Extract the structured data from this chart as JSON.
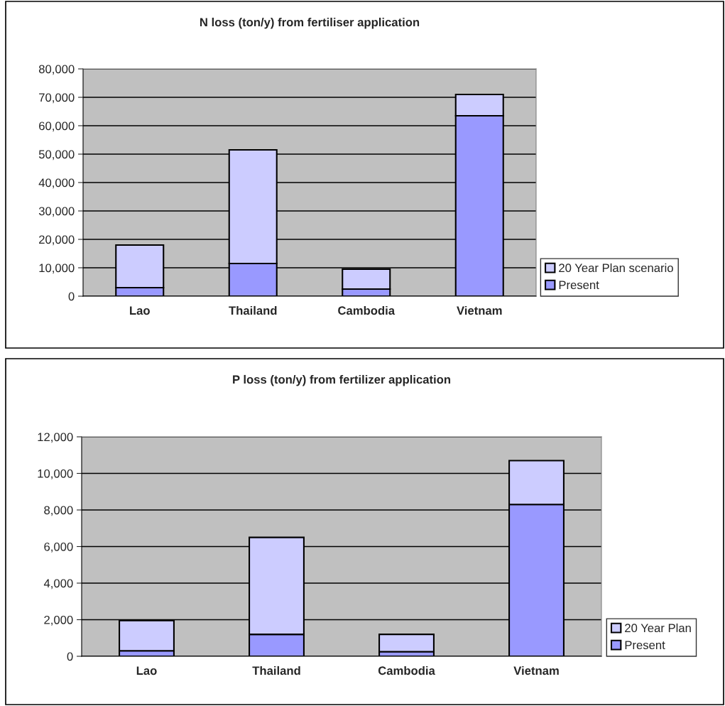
{
  "chart_data": [
    {
      "type": "bar",
      "title": "N loss (ton/y) from fertiliser application",
      "categories": [
        "Lao",
        "Thailand",
        "Cambodia",
        "Vietnam"
      ],
      "stacked": true,
      "series": [
        {
          "name": "Present",
          "color": "#9999ff",
          "values": [
            3000,
            11500,
            2500,
            63500
          ]
        },
        {
          "name": "20 Year Plan scenario",
          "color": "#ccccff",
          "values": [
            15000,
            40000,
            7000,
            7500
          ]
        }
      ],
      "ylim": [
        0,
        80000
      ],
      "yticks": [
        0,
        {
          "value": 10000,
          "label": "10,000"
        },
        {
          "value": 20000,
          "label": "20,000"
        },
        {
          "value": 30000,
          "label": "30,000"
        },
        {
          "value": 40000,
          "label": "40,000"
        },
        {
          "value": 50000,
          "label": "50,000"
        },
        {
          "value": 60000,
          "label": "60,000"
        },
        {
          "value": 70000,
          "label": "70,000"
        },
        {
          "value": 80000,
          "label": "80,000"
        }
      ],
      "grid": "y",
      "legend": "right"
    },
    {
      "type": "bar",
      "title": "P loss (ton/y) from fertilizer application",
      "categories": [
        "Lao",
        "Thailand",
        "Cambodia",
        "Vietnam"
      ],
      "stacked": true,
      "series": [
        {
          "name": "Present",
          "color": "#9999ff",
          "values": [
            300,
            1200,
            250,
            8300
          ]
        },
        {
          "name": "20 Year Plan",
          "color": "#ccccff",
          "values": [
            1650,
            5300,
            950,
            2400
          ]
        }
      ],
      "ylim": [
        0,
        12000
      ],
      "yticks": [
        0,
        {
          "value": 2000,
          "label": "2,000"
        },
        {
          "value": 4000,
          "label": "4,000"
        },
        {
          "value": 6000,
          "label": "6,000"
        },
        {
          "value": 8000,
          "label": "8,000"
        },
        {
          "value": 10000,
          "label": "10,000"
        },
        {
          "value": 12000,
          "label": "12,000"
        }
      ],
      "grid": "y",
      "legend": "right"
    }
  ]
}
